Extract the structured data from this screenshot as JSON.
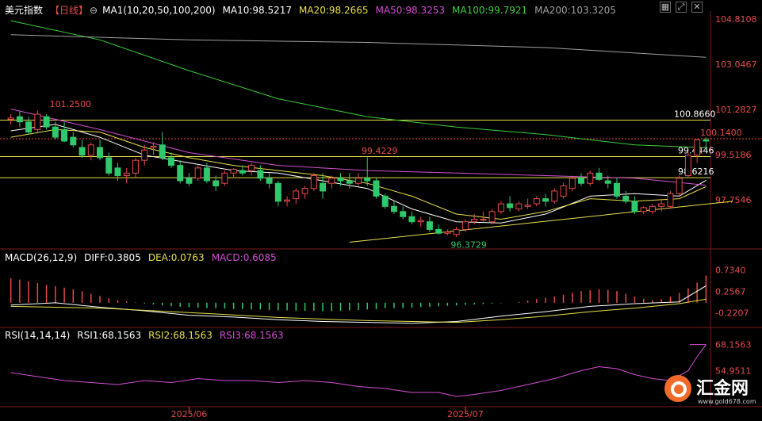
{
  "header": {
    "symbol": "美元指数",
    "period": "【日线】",
    "period_icon": "circle-minus-icon",
    "indicators": [
      {
        "label": "MA1(10,20,50,100,200)",
        "color": "#ffffff"
      },
      {
        "label": "MA10:98.5217",
        "color": "#ffffff"
      },
      {
        "label": "MA20:98.2665",
        "color": "#e8e04a"
      },
      {
        "label": "MA50:98.3253",
        "color": "#d44fd4"
      },
      {
        "label": "MA100:99.7921",
        "color": "#3ccf3c"
      },
      {
        "label": "MA200:103.3205",
        "color": "#a0a0a0"
      }
    ]
  },
  "toolbar": {
    "icons": [
      "grid-icon",
      "expand-icon",
      "close-icon"
    ]
  },
  "macd_header": {
    "items": [
      {
        "label": "MACD(26,12,9)",
        "color": "#ffffff"
      },
      {
        "label": "DIFF:0.3805",
        "color": "#ffffff"
      },
      {
        "label": "DEA:0.0763",
        "color": "#e8e04a"
      },
      {
        "label": "MACD:0.6085",
        "color": "#d44fd4"
      }
    ]
  },
  "rsi_header": {
    "items": [
      {
        "label": "RSI(14,14,14)",
        "color": "#ffffff"
      },
      {
        "label": "RSI1:68.1563",
        "color": "#ffffff"
      },
      {
        "label": "RSI2:68.1563",
        "color": "#e8e04a"
      },
      {
        "label": "RSI3:68.1563",
        "color": "#d44fd4"
      }
    ]
  },
  "colors": {
    "up": "#e84a4a",
    "down": "#2fc96b",
    "axis_text": "#e84a4a",
    "rsi": "#d44fd4",
    "trend": "#e8e04a",
    "level": "#e8e04a"
  },
  "chart_data": [
    {
      "type": "candlestick",
      "price_axis": {
        "min": 95.9,
        "max": 105.0,
        "ticks": [
          104.8108,
          103.0467,
          101.2827,
          99.5186,
          97.7546
        ]
      },
      "time_labels": [
        {
          "index": 20,
          "label": "2025/06"
        },
        {
          "index": 51,
          "label": "2025/07"
        }
      ],
      "ohlc": [
        [
          100.9,
          101.1,
          100.7,
          100.95
        ],
        [
          101.0,
          101.2,
          100.6,
          100.8
        ],
        [
          100.8,
          101.0,
          100.3,
          100.4
        ],
        [
          100.5,
          101.25,
          100.4,
          101.1
        ],
        [
          101.0,
          101.1,
          100.5,
          100.6
        ],
        [
          100.6,
          100.8,
          100.1,
          100.2
        ],
        [
          100.5,
          100.8,
          100.0,
          100.05
        ],
        [
          100.2,
          100.4,
          99.8,
          99.9
        ],
        [
          99.8,
          100.1,
          99.4,
          99.5
        ],
        [
          99.5,
          100.0,
          99.3,
          99.9
        ],
        [
          99.8,
          100.1,
          99.3,
          99.4
        ],
        [
          99.4,
          99.6,
          98.7,
          98.8
        ],
        [
          99.0,
          99.2,
          98.5,
          98.7
        ],
        [
          98.7,
          99.0,
          98.4,
          98.8
        ],
        [
          98.8,
          99.4,
          98.6,
          99.3
        ],
        [
          99.3,
          99.9,
          99.1,
          99.7
        ],
        [
          99.8,
          100.0,
          99.5,
          99.85
        ],
        [
          99.9,
          100.4,
          99.3,
          99.4
        ],
        [
          99.4,
          99.6,
          99.0,
          99.1
        ],
        [
          99.1,
          99.3,
          98.4,
          98.5
        ],
        [
          98.6,
          98.8,
          98.3,
          98.4
        ],
        [
          98.6,
          99.1,
          98.5,
          99.0
        ],
        [
          99.0,
          99.2,
          98.4,
          98.5
        ],
        [
          98.5,
          98.7,
          98.1,
          98.3
        ],
        [
          98.4,
          98.9,
          98.3,
          98.8
        ],
        [
          98.8,
          99.0,
          98.6,
          98.95
        ],
        [
          98.9,
          99.1,
          98.7,
          98.8
        ],
        [
          98.9,
          99.2,
          98.7,
          99.1
        ],
        [
          98.9,
          99.1,
          98.5,
          98.6
        ],
        [
          98.6,
          98.8,
          98.2,
          98.4
        ],
        [
          98.4,
          98.5,
          97.5,
          97.7
        ],
        [
          97.7,
          97.9,
          97.5,
          97.75
        ],
        [
          97.8,
          98.2,
          97.6,
          98.1
        ],
        [
          98.0,
          98.3,
          97.8,
          98.2
        ],
        [
          98.2,
          98.8,
          98.1,
          98.7
        ],
        [
          98.4,
          98.8,
          97.8,
          98.1
        ],
        [
          98.4,
          98.7,
          98.2,
          98.6
        ],
        [
          98.6,
          98.8,
          98.3,
          98.5
        ],
        [
          98.5,
          98.8,
          98.2,
          98.4
        ],
        [
          98.4,
          98.8,
          98.3,
          98.6
        ],
        [
          98.6,
          99.42,
          98.3,
          98.5
        ],
        [
          98.5,
          98.6,
          97.8,
          97.9
        ],
        [
          97.9,
          98.0,
          97.4,
          97.5
        ],
        [
          97.5,
          97.7,
          97.2,
          97.3
        ],
        [
          97.3,
          97.5,
          97.0,
          97.1
        ],
        [
          97.1,
          97.3,
          96.8,
          96.9
        ],
        [
          96.9,
          97.1,
          96.7,
          96.95
        ],
        [
          96.9,
          97.1,
          96.5,
          96.6
        ],
        [
          96.6,
          96.8,
          96.4,
          96.45
        ],
        [
          96.45,
          96.6,
          96.37,
          96.5
        ],
        [
          96.4,
          96.7,
          96.3,
          96.6
        ],
        [
          96.6,
          97.0,
          96.5,
          96.9
        ],
        [
          96.9,
          97.2,
          96.8,
          97.0
        ],
        [
          97.0,
          97.3,
          96.9,
          97.0
        ],
        [
          96.9,
          97.4,
          96.8,
          97.3
        ],
        [
          97.3,
          97.7,
          97.2,
          97.6
        ],
        [
          97.6,
          97.9,
          97.3,
          97.45
        ],
        [
          97.4,
          97.7,
          97.3,
          97.6
        ],
        [
          97.5,
          97.8,
          97.4,
          97.55
        ],
        [
          97.6,
          97.9,
          97.5,
          97.8
        ],
        [
          97.8,
          98.0,
          97.5,
          97.7
        ],
        [
          97.7,
          98.2,
          97.6,
          98.1
        ],
        [
          97.9,
          98.4,
          97.8,
          98.3
        ],
        [
          98.2,
          98.7,
          98.1,
          98.6
        ],
        [
          98.6,
          98.8,
          98.3,
          98.4
        ],
        [
          98.4,
          98.9,
          98.3,
          98.8
        ],
        [
          98.8,
          99.0,
          98.5,
          98.55
        ],
        [
          98.5,
          98.7,
          98.2,
          98.4
        ],
        [
          98.4,
          98.6,
          97.8,
          97.9
        ],
        [
          97.9,
          98.1,
          97.6,
          97.7
        ],
        [
          97.7,
          97.9,
          97.2,
          97.3
        ],
        [
          97.3,
          97.5,
          97.2,
          97.45
        ],
        [
          97.3,
          97.6,
          97.2,
          97.5
        ],
        [
          97.5,
          97.8,
          97.3,
          97.6
        ],
        [
          97.5,
          98.1,
          97.4,
          98.0
        ],
        [
          98.0,
          98.7,
          97.9,
          98.6
        ],
        [
          98.7,
          99.6,
          98.6,
          99.5
        ],
        [
          99.5,
          100.14,
          99.2,
          100.1
        ],
        [
          100.1,
          100.2,
          99.8,
          100.05
        ]
      ],
      "series": [
        {
          "name": "MA10",
          "color": "#ffffff",
          "values": [
            [
              0,
              100.45
            ],
            [
              5,
              100.7
            ],
            [
              10,
              100.2
            ],
            [
              15,
              99.5
            ],
            [
              20,
              99.2
            ],
            [
              25,
              98.9
            ],
            [
              30,
              98.8
            ],
            [
              35,
              98.5
            ],
            [
              40,
              98.2
            ],
            [
              45,
              97.4
            ],
            [
              50,
              96.9
            ],
            [
              55,
              96.85
            ],
            [
              60,
              97.2
            ],
            [
              65,
              97.9
            ],
            [
              70,
              98.0
            ],
            [
              75,
              97.9
            ],
            [
              78,
              98.52
            ]
          ]
        },
        {
          "name": "MA20",
          "color": "#e8e04a",
          "values": [
            [
              0,
              100.2
            ],
            [
              5,
              100.5
            ],
            [
              10,
              100.4
            ],
            [
              15,
              99.8
            ],
            [
              20,
              99.4
            ],
            [
              25,
              99.1
            ],
            [
              30,
              98.9
            ],
            [
              35,
              98.7
            ],
            [
              40,
              98.4
            ],
            [
              45,
              97.9
            ],
            [
              50,
              97.2
            ],
            [
              55,
              97.0
            ],
            [
              60,
              97.3
            ],
            [
              65,
              97.8
            ],
            [
              70,
              97.7
            ],
            [
              75,
              97.8
            ],
            [
              78,
              98.27
            ]
          ]
        },
        {
          "name": "MA50",
          "color": "#d44fd4",
          "values": [
            [
              0,
              101.3
            ],
            [
              10,
              100.5
            ],
            [
              20,
              99.6
            ],
            [
              30,
              99.1
            ],
            [
              40,
              98.9
            ],
            [
              50,
              98.8
            ],
            [
              60,
              98.7
            ],
            [
              70,
              98.6
            ],
            [
              78,
              98.33
            ]
          ]
        },
        {
          "name": "MA100",
          "color": "#3ccf3c",
          "values": [
            [
              0,
              104.75
            ],
            [
              10,
              104.0
            ],
            [
              20,
              102.8
            ],
            [
              30,
              101.7
            ],
            [
              40,
              101.0
            ],
            [
              50,
              100.6
            ],
            [
              60,
              100.3
            ],
            [
              70,
              99.9
            ],
            [
              78,
              99.79
            ]
          ]
        },
        {
          "name": "MA200",
          "color": "#a0a0a0",
          "values": [
            [
              0,
              104.2
            ],
            [
              20,
              104.0
            ],
            [
              40,
              103.9
            ],
            [
              60,
              103.7
            ],
            [
              78,
              103.32
            ]
          ]
        }
      ],
      "levels": [
        {
          "value": 100.866,
          "label": "100.8660"
        },
        {
          "value": 99.4446,
          "label": "99.4446"
        },
        {
          "value": 98.6216,
          "label": "98.6216"
        }
      ],
      "current_price": {
        "value": 100.14
      },
      "trendline": [
        [
          38,
          96.1
        ],
        [
          81,
          97.7
        ]
      ],
      "annotations": [
        {
          "index": 4,
          "value": 101.25,
          "label": "101.2500",
          "color": "#e84a4a"
        },
        {
          "index": 39,
          "value": 99.4229,
          "label": "99.4229",
          "color": "#e84a4a"
        },
        {
          "index": 49,
          "value": 96.3729,
          "label": "96.3729",
          "color": "#2fc96b"
        },
        {
          "index": 77,
          "value": 100.14,
          "label": "100.1400",
          "color": "#e84a4a"
        }
      ]
    },
    {
      "type": "macd",
      "axis": {
        "min": -0.5,
        "max": 0.85,
        "ticks": [
          0.734,
          0.2567,
          -0.2207
        ]
      },
      "histogram": [
        0.55,
        0.52,
        0.48,
        0.44,
        0.4,
        0.37,
        0.34,
        0.3,
        0.26,
        0.2,
        0.15,
        0.1,
        0.06,
        0.03,
        0.01,
        -0.02,
        -0.04,
        -0.06,
        -0.08,
        -0.09,
        -0.1,
        -0.11,
        -0.12,
        -0.12,
        -0.13,
        -0.14,
        -0.14,
        -0.15,
        -0.15,
        -0.16,
        -0.17,
        -0.17,
        -0.18,
        -0.18,
        -0.18,
        -0.19,
        -0.19,
        -0.18,
        -0.17,
        -0.16,
        -0.15,
        -0.14,
        -0.12,
        -0.12,
        -0.12,
        -0.11,
        -0.1,
        -0.09,
        -0.08,
        -0.07,
        -0.06,
        -0.05,
        -0.04,
        -0.03,
        -0.02,
        -0.01,
        0.0,
        0.02,
        0.05,
        0.08,
        0.11,
        0.14,
        0.18,
        0.22,
        0.26,
        0.28,
        0.3,
        0.29,
        0.26,
        0.2,
        0.14,
        0.09,
        0.06,
        0.08,
        0.14,
        0.22,
        0.32,
        0.45,
        0.61
      ],
      "diff": [
        [
          0,
          -0.05
        ],
        [
          5,
          0.0
        ],
        [
          10,
          -0.1
        ],
        [
          15,
          -0.18
        ],
        [
          20,
          -0.28
        ],
        [
          25,
          -0.32
        ],
        [
          30,
          -0.38
        ],
        [
          35,
          -0.42
        ],
        [
          40,
          -0.44
        ],
        [
          45,
          -0.46
        ],
        [
          50,
          -0.42
        ],
        [
          55,
          -0.3
        ],
        [
          60,
          -0.2
        ],
        [
          65,
          -0.08
        ],
        [
          70,
          -0.02
        ],
        [
          75,
          0.02
        ],
        [
          78,
          0.38
        ]
      ],
      "dea": [
        [
          0,
          -0.08
        ],
        [
          10,
          -0.12
        ],
        [
          20,
          -0.22
        ],
        [
          30,
          -0.33
        ],
        [
          40,
          -0.4
        ],
        [
          50,
          -0.44
        ],
        [
          55,
          -0.38
        ],
        [
          60,
          -0.3
        ],
        [
          65,
          -0.2
        ],
        [
          70,
          -0.12
        ],
        [
          75,
          -0.02
        ],
        [
          78,
          0.08
        ]
      ]
    },
    {
      "type": "rsi",
      "axis": {
        "min": 38,
        "max": 70,
        "ticks": [
          68.1563,
          54.9511
        ]
      },
      "values": [
        [
          0,
          54
        ],
        [
          3,
          52
        ],
        [
          6,
          50
        ],
        [
          9,
          49
        ],
        [
          12,
          48
        ],
        [
          15,
          50
        ],
        [
          18,
          49
        ],
        [
          21,
          51
        ],
        [
          24,
          50
        ],
        [
          27,
          50
        ],
        [
          30,
          49
        ],
        [
          33,
          50
        ],
        [
          36,
          49
        ],
        [
          39,
          47
        ],
        [
          42,
          46
        ],
        [
          45,
          44
        ],
        [
          48,
          44
        ],
        [
          50,
          42
        ],
        [
          52,
          43
        ],
        [
          55,
          45
        ],
        [
          58,
          48
        ],
        [
          61,
          51
        ],
        [
          64,
          55
        ],
        [
          66,
          57
        ],
        [
          68,
          56
        ],
        [
          70,
          53
        ],
        [
          72,
          51
        ],
        [
          74,
          50
        ],
        [
          76,
          55
        ],
        [
          77,
          62
        ],
        [
          78,
          68.1563
        ]
      ]
    }
  ]
}
